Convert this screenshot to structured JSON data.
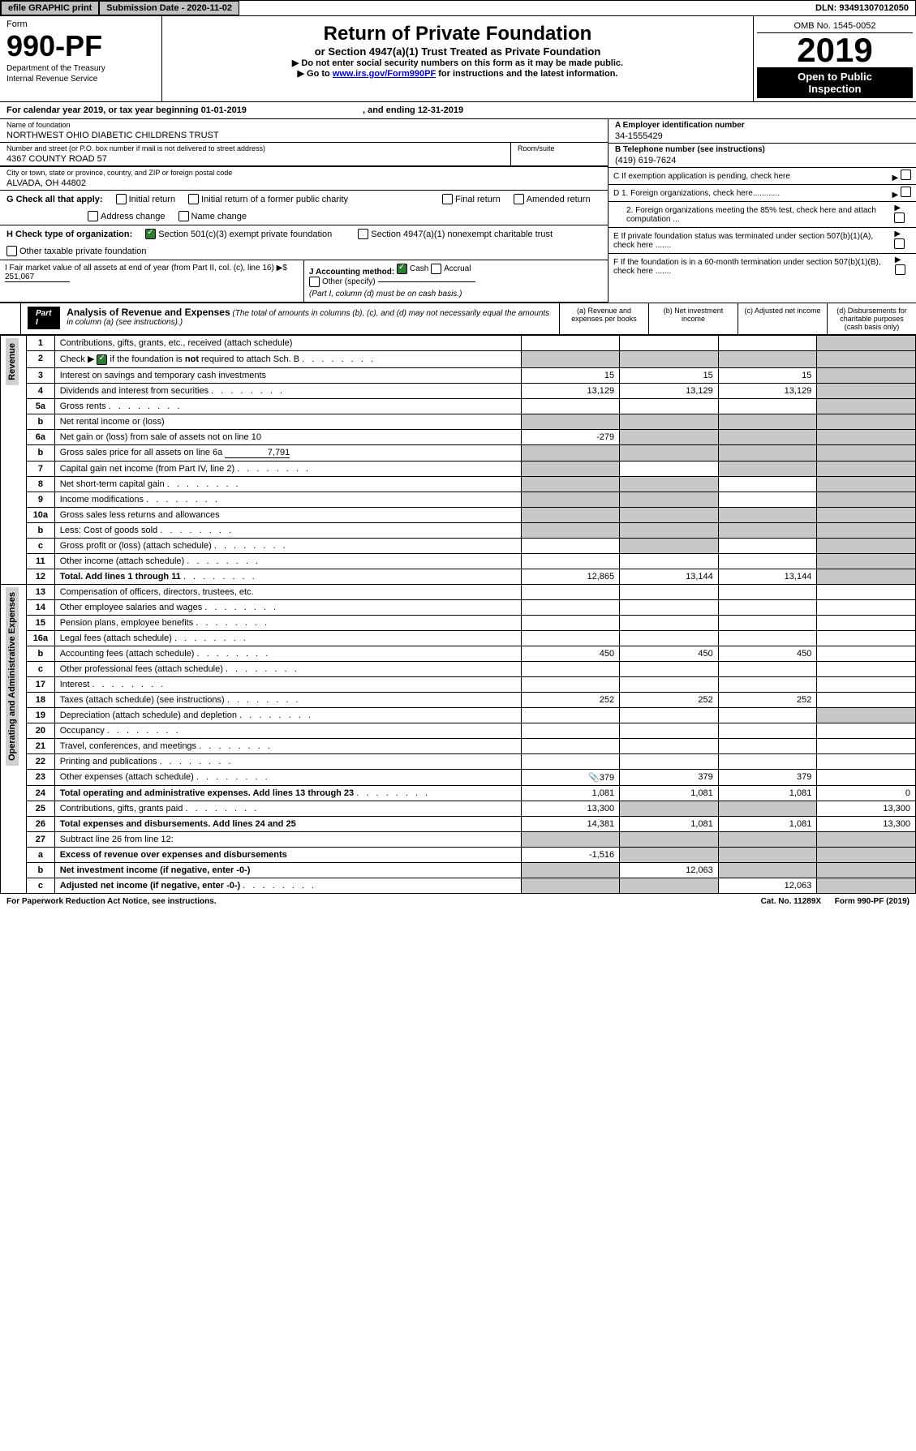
{
  "topbar": {
    "efile": "efile GRAPHIC print",
    "submission": "Submission Date - 2020-11-02",
    "dln": "DLN: 93491307012050"
  },
  "header": {
    "form_label": "Form",
    "form_num": "990-PF",
    "dept": "Department of the Treasury\nInternal Revenue Service",
    "title": "Return of Private Foundation",
    "subtitle": "or Section 4947(a)(1) Trust Treated as Private Foundation",
    "instr1": "▶ Do not enter social security numbers on this form as it may be made public.",
    "instr2": "▶ Go to ",
    "instr2_link": "www.irs.gov/Form990PF",
    "instr2_tail": " for instructions and the latest information.",
    "omb": "OMB No. 1545-0052",
    "year": "2019",
    "open": "Open to Public\nInspection"
  },
  "cal_year": "For calendar year 2019, or tax year beginning 01-01-2019",
  "cal_year_end": ", and ending 12-31-2019",
  "info": {
    "name_label": "Name of foundation",
    "name": "NORTHWEST OHIO DIABETIC CHILDRENS TRUST",
    "addr_label": "Number and street (or P.O. box number if mail is not delivered to street address)",
    "addr": "4367 COUNTY ROAD 57",
    "room_label": "Room/suite",
    "city_label": "City or town, state or province, country, and ZIP or foreign postal code",
    "city": "ALVADA, OH  44802",
    "a_label": "A Employer identification number",
    "a_val": "34-1555429",
    "b_label": "B Telephone number (see instructions)",
    "b_val": "(419) 619-7624",
    "c_label": "C If exemption application is pending, check here",
    "d1": "D 1. Foreign organizations, check here............",
    "d2": "2. Foreign organizations meeting the 85% test, check here and attach computation ...",
    "e": "E  If private foundation status was terminated under section 507(b)(1)(A), check here .......",
    "f": "F  If the foundation is in a 60-month termination under section 507(b)(1)(B), check here ......."
  },
  "g": {
    "label": "G Check all that apply:",
    "items": [
      "Initial return",
      "Initial return of a former public charity",
      "Final return",
      "Amended return",
      "Address change",
      "Name change"
    ]
  },
  "h": {
    "label": "H Check type of organization:",
    "opt1": "Section 501(c)(3) exempt private foundation",
    "opt2": "Section 4947(a)(1) nonexempt charitable trust",
    "opt3": "Other taxable private foundation"
  },
  "i": {
    "label": "I Fair market value of all assets at end of year (from Part II, col. (c), line 16) ▶$",
    "val": "251,067"
  },
  "j": {
    "label": "J Accounting method:",
    "cash": "Cash",
    "accrual": "Accrual",
    "other": "Other (specify)",
    "note": "(Part I, column (d) must be on cash basis.)"
  },
  "part1": {
    "tag": "Part I",
    "title": "Analysis of Revenue and Expenses",
    "note": "(The total of amounts in columns (b), (c), and (d) may not necessarily equal the amounts in column (a) (see instructions).)",
    "cols": {
      "a": "(a)  Revenue and expenses per books",
      "b": "(b)  Net investment income",
      "c": "(c)  Adjusted net income",
      "d": "(d)  Disbursements for charitable purposes (cash basis only)"
    }
  },
  "sides": {
    "revenue": "Revenue",
    "expenses": "Operating and Administrative Expenses"
  },
  "rows": [
    {
      "n": "1",
      "label": "Contributions, gifts, grants, etc., received (attach schedule)",
      "a": "",
      "b": "",
      "c": "",
      "d": "",
      "dg": true
    },
    {
      "n": "2",
      "label": "Check ▶ ☑ if the foundation is not required to attach Sch. B",
      "a": "",
      "b": "",
      "c": "",
      "d": "",
      "dots": true,
      "bold_not": true,
      "dg": true,
      "ag": true,
      "bg": true,
      "cg": true
    },
    {
      "n": "3",
      "label": "Interest on savings and temporary cash investments",
      "a": "15",
      "b": "15",
      "c": "15",
      "d": "",
      "dg": true
    },
    {
      "n": "4",
      "label": "Dividends and interest from securities",
      "a": "13,129",
      "b": "13,129",
      "c": "13,129",
      "d": "",
      "dots": true,
      "dg": true
    },
    {
      "n": "5a",
      "label": "Gross rents",
      "a": "",
      "b": "",
      "c": "",
      "d": "",
      "dots": true,
      "dg": true
    },
    {
      "n": "b",
      "label": "Net rental income or (loss)",
      "a": "",
      "b": "",
      "c": "",
      "d": "",
      "has_box": true,
      "bg": true,
      "cg": true,
      "dg": true,
      "ag": true
    },
    {
      "n": "6a",
      "label": "Net gain or (loss) from sale of assets not on line 10",
      "a": "-279",
      "b": "",
      "c": "",
      "d": "",
      "bg": true,
      "cg": true,
      "dg": true
    },
    {
      "n": "b",
      "label": "Gross sales price for all assets on line 6a",
      "a": "",
      "b": "",
      "c": "",
      "d": "",
      "inline_val": "7,791",
      "ag": true,
      "bg": true,
      "cg": true,
      "dg": true
    },
    {
      "n": "7",
      "label": "Capital gain net income (from Part IV, line 2)",
      "a": "",
      "b": "",
      "c": "",
      "d": "",
      "dots": true,
      "ag": true,
      "cg": true,
      "dg": true
    },
    {
      "n": "8",
      "label": "Net short-term capital gain",
      "a": "",
      "b": "",
      "c": "",
      "d": "",
      "dots": true,
      "ag": true,
      "bg": true,
      "dg": true
    },
    {
      "n": "9",
      "label": "Income modifications",
      "a": "",
      "b": "",
      "c": "",
      "d": "",
      "dots": true,
      "ag": true,
      "bg": true,
      "dg": true
    },
    {
      "n": "10a",
      "label": "Gross sales less returns and allowances",
      "a": "",
      "b": "",
      "c": "",
      "d": "",
      "has_box": true,
      "ag": true,
      "bg": true,
      "cg": true,
      "dg": true
    },
    {
      "n": "b",
      "label": "Less: Cost of goods sold",
      "a": "",
      "b": "",
      "c": "",
      "d": "",
      "dots": true,
      "has_box": true,
      "ag": true,
      "bg": true,
      "cg": true,
      "dg": true
    },
    {
      "n": "c",
      "label": "Gross profit or (loss) (attach schedule)",
      "a": "",
      "b": "",
      "c": "",
      "d": "",
      "dots": true,
      "bg": true,
      "dg": true
    },
    {
      "n": "11",
      "label": "Other income (attach schedule)",
      "a": "",
      "b": "",
      "c": "",
      "d": "",
      "dots": true,
      "dg": true
    },
    {
      "n": "12",
      "label": "Total. Add lines 1 through 11",
      "a": "12,865",
      "b": "13,144",
      "c": "13,144",
      "d": "",
      "dots": true,
      "bold": true,
      "dg": true
    },
    {
      "n": "13",
      "label": "Compensation of officers, directors, trustees, etc.",
      "a": "",
      "b": "",
      "c": "",
      "d": "",
      "section": "exp"
    },
    {
      "n": "14",
      "label": "Other employee salaries and wages",
      "a": "",
      "b": "",
      "c": "",
      "d": "",
      "dots": true
    },
    {
      "n": "15",
      "label": "Pension plans, employee benefits",
      "a": "",
      "b": "",
      "c": "",
      "d": "",
      "dots": true
    },
    {
      "n": "16a",
      "label": "Legal fees (attach schedule)",
      "a": "",
      "b": "",
      "c": "",
      "d": "",
      "dots": true
    },
    {
      "n": "b",
      "label": "Accounting fees (attach schedule)",
      "a": "450",
      "b": "450",
      "c": "450",
      "d": "",
      "dots": true
    },
    {
      "n": "c",
      "label": "Other professional fees (attach schedule)",
      "a": "",
      "b": "",
      "c": "",
      "d": "",
      "dots": true
    },
    {
      "n": "17",
      "label": "Interest",
      "a": "",
      "b": "",
      "c": "",
      "d": "",
      "dots": true
    },
    {
      "n": "18",
      "label": "Taxes (attach schedule) (see instructions)",
      "a": "252",
      "b": "252",
      "c": "252",
      "d": "",
      "dots": true
    },
    {
      "n": "19",
      "label": "Depreciation (attach schedule) and depletion",
      "a": "",
      "b": "",
      "c": "",
      "d": "",
      "dots": true,
      "dg": true
    },
    {
      "n": "20",
      "label": "Occupancy",
      "a": "",
      "b": "",
      "c": "",
      "d": "",
      "dots": true
    },
    {
      "n": "21",
      "label": "Travel, conferences, and meetings",
      "a": "",
      "b": "",
      "c": "",
      "d": "",
      "dots": true
    },
    {
      "n": "22",
      "label": "Printing and publications",
      "a": "",
      "b": "",
      "c": "",
      "d": "",
      "dots": true
    },
    {
      "n": "23",
      "label": "Other expenses (attach schedule)",
      "a": "379",
      "b": "379",
      "c": "379",
      "d": "",
      "dots": true,
      "icon": true
    },
    {
      "n": "24",
      "label": "Total operating and administrative expenses. Add lines 13 through 23",
      "a": "1,081",
      "b": "1,081",
      "c": "1,081",
      "d": "0",
      "dots": true,
      "bold": true
    },
    {
      "n": "25",
      "label": "Contributions, gifts, grants paid",
      "a": "13,300",
      "b": "",
      "c": "",
      "d": "13,300",
      "dots": true,
      "bg": true,
      "cg": true
    },
    {
      "n": "26",
      "label": "Total expenses and disbursements. Add lines 24 and 25",
      "a": "14,381",
      "b": "1,081",
      "c": "1,081",
      "d": "13,300",
      "bold": true
    },
    {
      "n": "27",
      "label": "Subtract line 26 from line 12:",
      "a": "",
      "b": "",
      "c": "",
      "d": "",
      "ag": true,
      "bg": true,
      "cg": true,
      "dg": true
    },
    {
      "n": "a",
      "label": "Excess of revenue over expenses and disbursements",
      "a": "-1,516",
      "b": "",
      "c": "",
      "d": "",
      "bold": true,
      "bg": true,
      "cg": true,
      "dg": true
    },
    {
      "n": "b",
      "label": "Net investment income (if negative, enter -0-)",
      "a": "",
      "b": "12,063",
      "c": "",
      "d": "",
      "bold": true,
      "ag": true,
      "cg": true,
      "dg": true
    },
    {
      "n": "c",
      "label": "Adjusted net income (if negative, enter -0-)",
      "a": "",
      "b": "",
      "c": "12,063",
      "d": "",
      "dots": true,
      "bold": true,
      "ag": true,
      "bg": true,
      "dg": true
    }
  ],
  "footer": {
    "left": "For Paperwork Reduction Act Notice, see instructions.",
    "mid": "Cat. No. 11289X",
    "right": "Form 990-PF (2019)"
  }
}
